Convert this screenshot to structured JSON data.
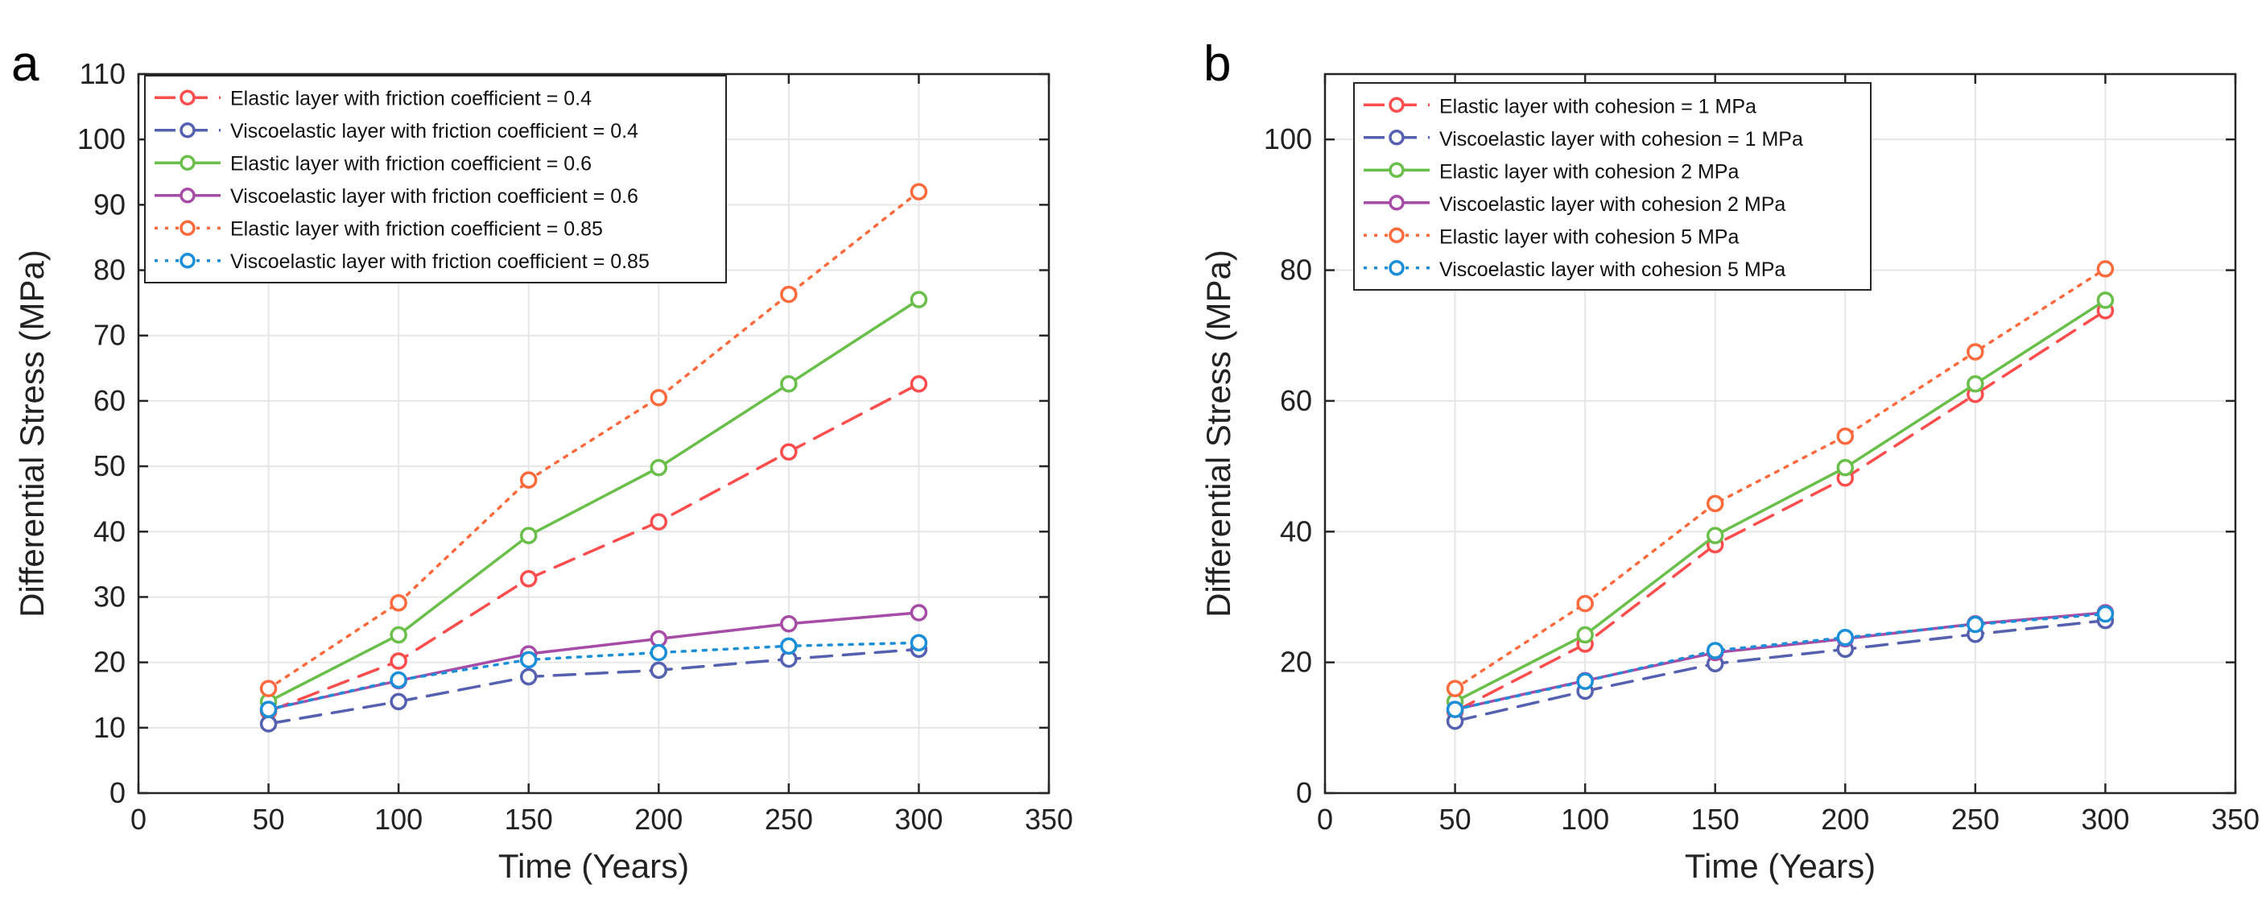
{
  "figure": {
    "panel_labels": [
      "a",
      "b"
    ]
  },
  "chart_data": [
    {
      "panel": "a",
      "type": "line",
      "title": "",
      "xlabel": "Time (Years)",
      "ylabel": "Differential Stress (MPa)",
      "xlim": [
        0,
        350
      ],
      "ylim": [
        0,
        110
      ],
      "xticks": [
        0,
        50,
        100,
        150,
        200,
        250,
        300,
        350
      ],
      "yticks": [
        0,
        10,
        20,
        30,
        40,
        50,
        60,
        70,
        80,
        90,
        100,
        110
      ],
      "grid": true,
      "legend_position": "top-left",
      "x": [
        50,
        100,
        150,
        200,
        250,
        300
      ],
      "series": [
        {
          "name": "Elastic layer with friction coefficient = 0.4",
          "color": "#ff4d4d",
          "line_style": "dashed",
          "marker": "circle",
          "values": [
            12.5,
            20.2,
            32.8,
            41.5,
            52.2,
            62.6
          ]
        },
        {
          "name": "Viscoelastic layer with friction coefficient = 0.4",
          "color": "#5560b0",
          "line_style": "dashed",
          "marker": "circle",
          "values": [
            10.6,
            14.0,
            17.8,
            18.8,
            20.5,
            22.0
          ]
        },
        {
          "name": "Elastic layer with friction coefficient = 0.6",
          "color": "#6abf4b",
          "line_style": "solid",
          "marker": "circle",
          "values": [
            14.0,
            24.2,
            39.4,
            49.8,
            62.6,
            75.5
          ]
        },
        {
          "name": "Viscoelastic layer with friction coefficient = 0.6",
          "color": "#a64ca6",
          "line_style": "solid",
          "marker": "circle",
          "values": [
            12.8,
            17.2,
            21.3,
            23.6,
            25.9,
            27.6
          ]
        },
        {
          "name": "Elastic layer with friction coefficient = 0.85",
          "color": "#ff6a3d",
          "line_style": "dotted",
          "marker": "circle",
          "values": [
            16.0,
            29.1,
            47.9,
            60.5,
            76.3,
            92.0
          ]
        },
        {
          "name": "Viscoelastic layer with friction coefficient = 0.85",
          "color": "#1a8fd8",
          "line_style": "dotted",
          "marker": "circle",
          "values": [
            12.8,
            17.3,
            20.4,
            21.5,
            22.5,
            23.0
          ]
        }
      ]
    },
    {
      "panel": "b",
      "type": "line",
      "title": "",
      "xlabel": "Time (Years)",
      "ylabel": "Differential Stress (MPa)",
      "xlim": [
        0,
        350
      ],
      "ylim": [
        0,
        110
      ],
      "xticks": [
        0,
        50,
        100,
        150,
        200,
        250,
        300,
        350
      ],
      "yticks": [
        0,
        20,
        40,
        60,
        80,
        100
      ],
      "grid": true,
      "legend_position": "top-left",
      "x": [
        50,
        100,
        150,
        200,
        250,
        300
      ],
      "series": [
        {
          "name": "Elastic layer with cohesion = 1 MPa",
          "color": "#ff4d4d",
          "line_style": "dashed",
          "marker": "circle",
          "values": [
            12.5,
            22.8,
            38.0,
            48.2,
            61.0,
            73.8
          ]
        },
        {
          "name": "Viscoelastic layer with cohesion = 1 MPa",
          "color": "#5560b0",
          "line_style": "dashed",
          "marker": "circle",
          "values": [
            11.0,
            15.6,
            19.8,
            22.0,
            24.3,
            26.4
          ]
        },
        {
          "name": "Elastic layer with cohesion 2 MPa",
          "color": "#6abf4b",
          "line_style": "solid",
          "marker": "circle",
          "values": [
            14.0,
            24.2,
            39.4,
            49.8,
            62.6,
            75.4
          ]
        },
        {
          "name": "Viscoelastic layer with cohesion 2 MPa",
          "color": "#a64ca6",
          "line_style": "solid",
          "marker": "circle",
          "values": [
            12.8,
            17.2,
            21.5,
            23.6,
            25.9,
            27.6
          ]
        },
        {
          "name": "Elastic layer with cohesion 5 MPa",
          "color": "#ff6a3d",
          "line_style": "dotted",
          "marker": "circle",
          "values": [
            16.0,
            29.0,
            44.3,
            54.6,
            67.5,
            80.2
          ]
        },
        {
          "name": "Viscoelastic layer with cohesion 5 MPa",
          "color": "#1a8fd8",
          "line_style": "dotted",
          "marker": "circle",
          "values": [
            12.8,
            17.1,
            21.8,
            23.8,
            25.8,
            27.4
          ]
        }
      ]
    }
  ]
}
